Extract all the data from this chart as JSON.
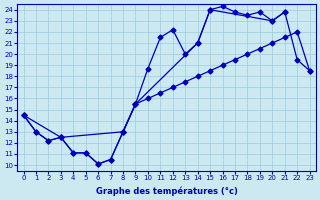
{
  "xlabel": "Graphe des températures (°c)",
  "bg_color": "#cce8f0",
  "line_color": "#0000bb",
  "grid_color": "#99cce0",
  "xlim": [
    -0.5,
    23.5
  ],
  "ylim": [
    9.5,
    24.5
  ],
  "xticks": [
    0,
    1,
    2,
    3,
    4,
    5,
    6,
    7,
    8,
    9,
    10,
    11,
    12,
    13,
    14,
    15,
    16,
    17,
    18,
    19,
    20,
    21,
    22,
    23
  ],
  "yticks": [
    10,
    11,
    12,
    13,
    14,
    15,
    16,
    17,
    18,
    19,
    20,
    21,
    22,
    23,
    24
  ],
  "curve1_x": [
    0,
    1,
    2,
    3,
    4,
    5,
    6,
    7,
    8,
    9,
    10,
    11,
    12,
    13,
    14,
    15,
    16,
    17,
    18,
    19,
    20,
    21
  ],
  "curve1_y": [
    14.5,
    13.0,
    12.2,
    12.5,
    11.1,
    11.1,
    10.1,
    10.5,
    13.0,
    15.5,
    18.7,
    21.5,
    22.2,
    20.0,
    21.0,
    24.0,
    24.3,
    23.8,
    23.5,
    23.8,
    23.0,
    23.8
  ],
  "curve2_x": [
    0,
    1,
    2,
    3,
    4,
    5,
    6,
    7,
    8,
    9,
    10,
    11,
    12,
    13,
    14,
    15,
    16,
    17,
    18,
    19,
    20,
    21,
    22,
    23
  ],
  "curve2_y": [
    14.5,
    13.0,
    12.2,
    12.5,
    11.1,
    11.1,
    10.1,
    10.5,
    13.0,
    15.5,
    16.0,
    16.5,
    17.0,
    17.5,
    18.0,
    18.5,
    19.0,
    19.5,
    20.0,
    20.5,
    21.0,
    21.5,
    22.0,
    18.5
  ],
  "curve3_x": [
    0,
    3,
    8,
    9,
    14,
    15,
    20,
    21,
    22,
    23
  ],
  "curve3_y": [
    14.5,
    12.5,
    13.0,
    15.5,
    21.0,
    24.0,
    23.0,
    23.8,
    19.5,
    18.5
  ],
  "marker": "D",
  "markersize": 2.5,
  "linewidth": 0.9
}
